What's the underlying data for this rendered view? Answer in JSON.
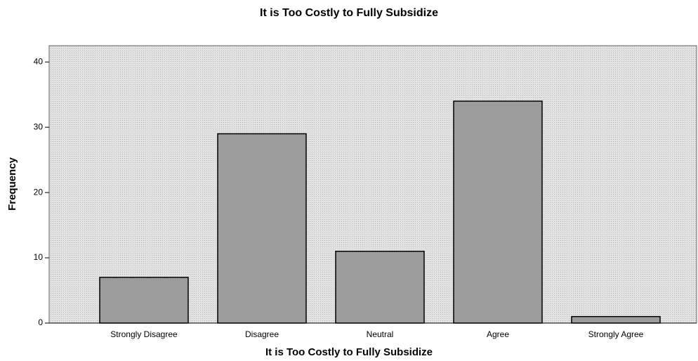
{
  "chart_data": {
    "type": "bar",
    "title": "It is Too Costly to Fully Subsidize",
    "x_label": "It is Too Costly to Fully Subsidize",
    "y_label": "Frequency",
    "categories": [
      "Strongly Disagree",
      "Disagree",
      "Neutral",
      "Agree",
      "Strongly Agree"
    ],
    "values": [
      7,
      29,
      11,
      34,
      1
    ],
    "color": "#9c9c9c",
    "ylim": [
      0,
      42.5
    ],
    "yticks": [
      0,
      10,
      20,
      30,
      40
    ],
    "grid": false
  }
}
